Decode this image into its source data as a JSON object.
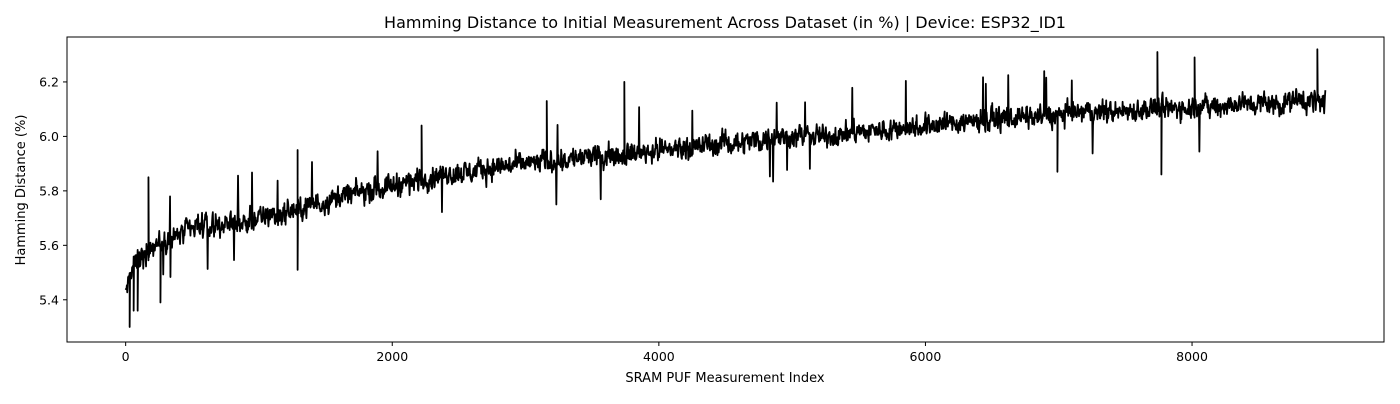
{
  "chart_data": {
    "type": "line",
    "title": "Hamming Distance to Initial Measurement Across Dataset (in %) | Device: ESP32_ID1",
    "xlabel": "SRAM PUF Measurement Index",
    "ylabel": "Hamming Distance (%)",
    "xlim": [
      -440,
      9440
    ],
    "ylim": [
      5.245,
      6.365
    ],
    "xticks": [
      0,
      2000,
      4000,
      6000,
      8000
    ],
    "xtick_labels": [
      "0",
      "2000",
      "4000",
      "6000",
      "8000"
    ],
    "yticks": [
      5.4,
      5.6,
      5.8,
      6.0,
      6.2
    ],
    "ytick_labels": [
      "5.4",
      "5.6",
      "5.8",
      "6.0",
      "6.2"
    ],
    "grid": false,
    "legend": "none",
    "series": [
      {
        "color": "#000000",
        "x": [
          0,
          10,
          20,
          30,
          40,
          50,
          60,
          80,
          100,
          120,
          140,
          160,
          180,
          200,
          250,
          300,
          400,
          500,
          600,
          700,
          800,
          900,
          1000,
          1100,
          1200,
          1300,
          1400,
          1500,
          1600,
          1700,
          1800,
          1900,
          2000,
          2200,
          2400,
          2600,
          2800,
          3000,
          3200,
          3400,
          3600,
          3800,
          4000,
          4200,
          4400,
          4600,
          4800,
          5000,
          5200,
          5400,
          5600,
          5800,
          6000,
          6200,
          6400,
          6600,
          6800,
          7000,
          7200,
          7400,
          7600,
          7800,
          8000,
          8200,
          8400,
          8600,
          8800,
          9000
        ],
        "y": [
          5.42,
          5.47,
          5.44,
          5.5,
          5.48,
          5.51,
          5.52,
          5.54,
          5.55,
          5.56,
          5.57,
          5.58,
          5.59,
          5.6,
          5.61,
          5.62,
          5.64,
          5.66,
          5.67,
          5.68,
          5.68,
          5.69,
          5.7,
          5.71,
          5.72,
          5.73,
          5.75,
          5.76,
          5.78,
          5.79,
          5.8,
          5.81,
          5.82,
          5.84,
          5.86,
          5.87,
          5.89,
          5.9,
          5.91,
          5.92,
          5.93,
          5.94,
          5.95,
          5.96,
          5.97,
          5.98,
          5.99,
          6.0,
          6.0,
          6.01,
          6.02,
          6.03,
          6.04,
          6.05,
          6.06,
          6.07,
          6.07,
          6.08,
          6.09,
          6.09,
          6.1,
          6.1,
          6.11,
          6.11,
          6.12,
          6.12,
          6.13,
          6.13
        ],
        "noise_amplitude": [
          0.06,
          0.07,
          0.08,
          0.08,
          0.08,
          0.08,
          0.08,
          0.08,
          0.08,
          0.08,
          0.08,
          0.08,
          0.07,
          0.07,
          0.07,
          0.07,
          0.07,
          0.07,
          0.07,
          0.07,
          0.07,
          0.07,
          0.07,
          0.07,
          0.07,
          0.07,
          0.07,
          0.07,
          0.07,
          0.07,
          0.07,
          0.07,
          0.07,
          0.07,
          0.07,
          0.07,
          0.07,
          0.07,
          0.07,
          0.07,
          0.07,
          0.07,
          0.07,
          0.07,
          0.07,
          0.07,
          0.07,
          0.07,
          0.07,
          0.07,
          0.07,
          0.07,
          0.07,
          0.07,
          0.07,
          0.07,
          0.07,
          0.07,
          0.07,
          0.07,
          0.07,
          0.07,
          0.07,
          0.07,
          0.07,
          0.07,
          0.07,
          0.07
        ],
        "spikes": [
          {
            "x": 30,
            "y": 5.3
          },
          {
            "x": 60,
            "y": 5.36
          },
          {
            "x": 90,
            "y": 5.36
          },
          {
            "x": 170,
            "y": 5.85
          },
          {
            "x": 260,
            "y": 5.39
          },
          {
            "x": 1290,
            "y": 5.95
          },
          {
            "x": 1290,
            "y": 5.51
          },
          {
            "x": 2220,
            "y": 6.04
          },
          {
            "x": 3160,
            "y": 6.13
          },
          {
            "x": 3740,
            "y": 6.2
          },
          {
            "x": 7740,
            "y": 6.31
          },
          {
            "x": 8020,
            "y": 6.29
          },
          {
            "x": 8940,
            "y": 6.32
          },
          {
            "x": 7770,
            "y": 5.86
          },
          {
            "x": 6990,
            "y": 5.87
          }
        ]
      }
    ]
  }
}
